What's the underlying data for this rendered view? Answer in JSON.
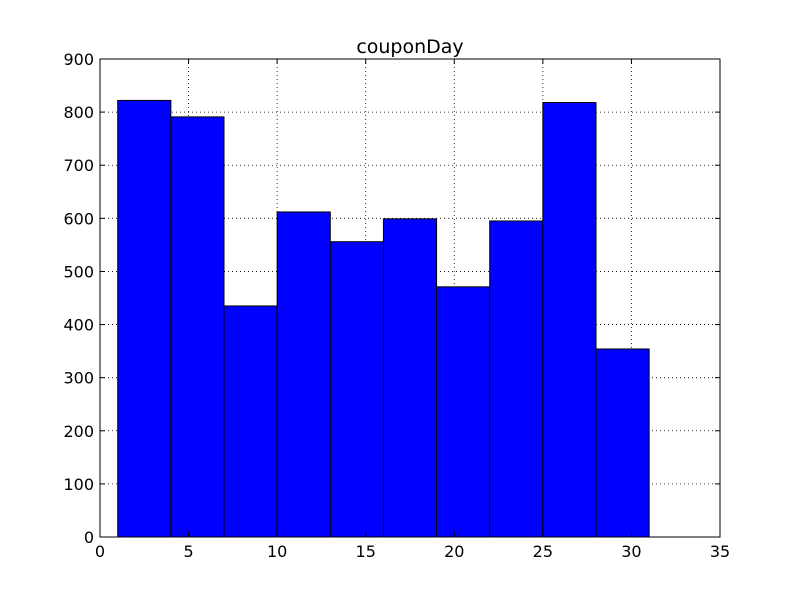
{
  "chart_data": {
    "type": "bar",
    "title": "couponDay",
    "xlabel": "",
    "ylabel": "",
    "xlim": [
      0,
      35
    ],
    "ylim": [
      0,
      900
    ],
    "xticks": [
      0,
      5,
      10,
      15,
      20,
      25,
      30,
      35
    ],
    "yticks": [
      0,
      100,
      200,
      300,
      400,
      500,
      600,
      700,
      800,
      900
    ],
    "grid": true,
    "bin_edges": [
      1,
      4,
      7,
      10,
      13,
      16,
      19,
      22,
      25,
      28,
      31
    ],
    "values": [
      822,
      791,
      435,
      612,
      556,
      599,
      471,
      595,
      818,
      354
    ],
    "bar_color": "#0000ff"
  }
}
